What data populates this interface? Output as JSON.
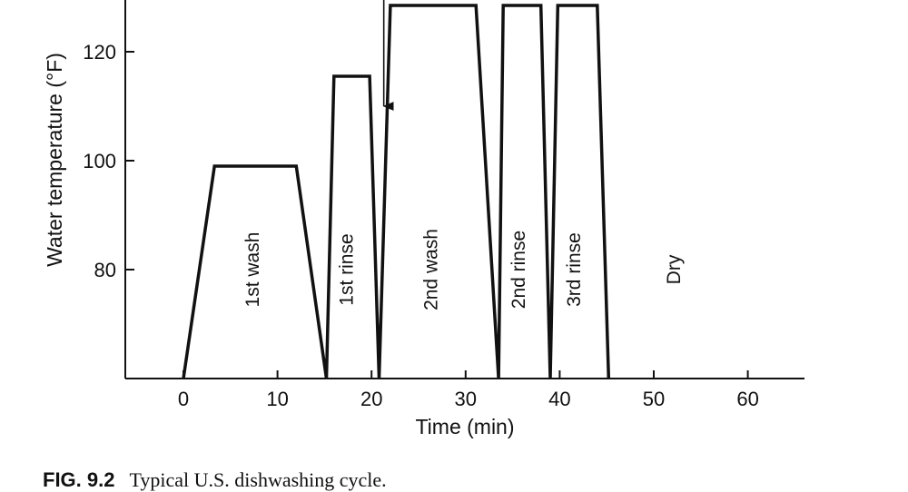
{
  "chart_data": {
    "type": "line",
    "title": "",
    "xlabel": "Time (min)",
    "ylabel": "Water temperature (°F)",
    "xlim": [
      -6,
      66
    ],
    "ylim": [
      60,
      130
    ],
    "xticks": [
      0,
      10,
      20,
      30,
      40,
      50,
      60
    ],
    "yticks": [
      80,
      100,
      120
    ],
    "grid": false,
    "series": [
      {
        "x": [
          0,
          3.3,
          12,
          15.2,
          16,
          19.8,
          20.8,
          22,
          31.1,
          33.5,
          34,
          38,
          39,
          39.8,
          44,
          45.2
        ],
        "y": [
          60,
          99,
          99,
          60,
          115.5,
          115.5,
          60,
          128.5,
          128.5,
          60,
          128.5,
          128.5,
          60,
          128.5,
          128.5,
          60
        ]
      }
    ],
    "phases": [
      {
        "label": "1st wash",
        "x": 8
      },
      {
        "label": "1st rinse",
        "x": 18
      },
      {
        "label": "2nd wash",
        "x": 27
      },
      {
        "label": "2nd rinse",
        "x": 36.3
      },
      {
        "label": "3rd rinse",
        "x": 42.2
      },
      {
        "label": "Dry",
        "x": 52.8
      }
    ],
    "annotation_arrow": {
      "x": 21.3,
      "y_tip": 110
    }
  },
  "caption": {
    "figure_number": "FIG. 9.2",
    "text": "Typical U.S. dishwashing cycle."
  }
}
